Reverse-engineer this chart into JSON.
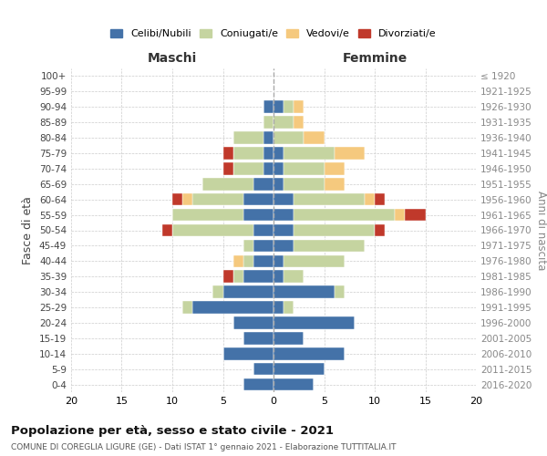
{
  "age_groups": [
    "0-4",
    "5-9",
    "10-14",
    "15-19",
    "20-24",
    "25-29",
    "30-34",
    "35-39",
    "40-44",
    "45-49",
    "50-54",
    "55-59",
    "60-64",
    "65-69",
    "70-74",
    "75-79",
    "80-84",
    "85-89",
    "90-94",
    "95-99",
    "100+"
  ],
  "birth_years": [
    "2016-2020",
    "2011-2015",
    "2006-2010",
    "2001-2005",
    "1996-2000",
    "1991-1995",
    "1986-1990",
    "1981-1985",
    "1976-1980",
    "1971-1975",
    "1966-1970",
    "1961-1965",
    "1956-1960",
    "1951-1955",
    "1946-1950",
    "1941-1945",
    "1936-1940",
    "1931-1935",
    "1926-1930",
    "1921-1925",
    "≤ 1920"
  ],
  "colors": {
    "celibe": "#4472a8",
    "coniugato": "#c5d4a0",
    "vedovo": "#f5c97e",
    "divorziato": "#c0392b"
  },
  "maschi": {
    "celibe": [
      3,
      2,
      5,
      3,
      4,
      8,
      5,
      3,
      2,
      2,
      2,
      3,
      3,
      2,
      1,
      1,
      1,
      0,
      1,
      0,
      0
    ],
    "coniugato": [
      0,
      0,
      0,
      0,
      0,
      1,
      1,
      1,
      1,
      1,
      8,
      7,
      5,
      5,
      3,
      3,
      3,
      1,
      0,
      0,
      0
    ],
    "vedovo": [
      0,
      0,
      0,
      0,
      0,
      0,
      0,
      0,
      1,
      0,
      0,
      0,
      1,
      0,
      0,
      0,
      0,
      0,
      0,
      0,
      0
    ],
    "divorziato": [
      0,
      0,
      0,
      0,
      0,
      0,
      0,
      1,
      0,
      0,
      1,
      0,
      1,
      0,
      1,
      1,
      0,
      0,
      0,
      0,
      0
    ]
  },
  "femmine": {
    "nubile": [
      4,
      5,
      7,
      3,
      8,
      1,
      6,
      1,
      1,
      2,
      2,
      2,
      2,
      1,
      1,
      1,
      0,
      0,
      1,
      0,
      0
    ],
    "coniugata": [
      0,
      0,
      0,
      0,
      0,
      1,
      1,
      2,
      6,
      7,
      8,
      10,
      7,
      4,
      4,
      5,
      3,
      2,
      1,
      0,
      0
    ],
    "vedova": [
      0,
      0,
      0,
      0,
      0,
      0,
      0,
      0,
      0,
      0,
      0,
      1,
      1,
      2,
      2,
      3,
      2,
      1,
      1,
      0,
      0
    ],
    "divorziata": [
      0,
      0,
      0,
      0,
      0,
      0,
      0,
      0,
      0,
      0,
      1,
      2,
      1,
      0,
      0,
      0,
      0,
      0,
      0,
      0,
      0
    ]
  },
  "xlim": 20,
  "title": "Popolazione per età, sesso e stato civile - 2021",
  "subtitle": "COMUNE DI COREGLIA LIGURE (GE) - Dati ISTAT 1° gennaio 2021 - Elaborazione TUTTITALIA.IT",
  "ylabel_left": "Fasce di età",
  "ylabel_right": "Anni di nascita",
  "xlabel_left": "Maschi",
  "xlabel_right": "Femmine",
  "background_color": "#ffffff",
  "grid_color": "#cccccc"
}
